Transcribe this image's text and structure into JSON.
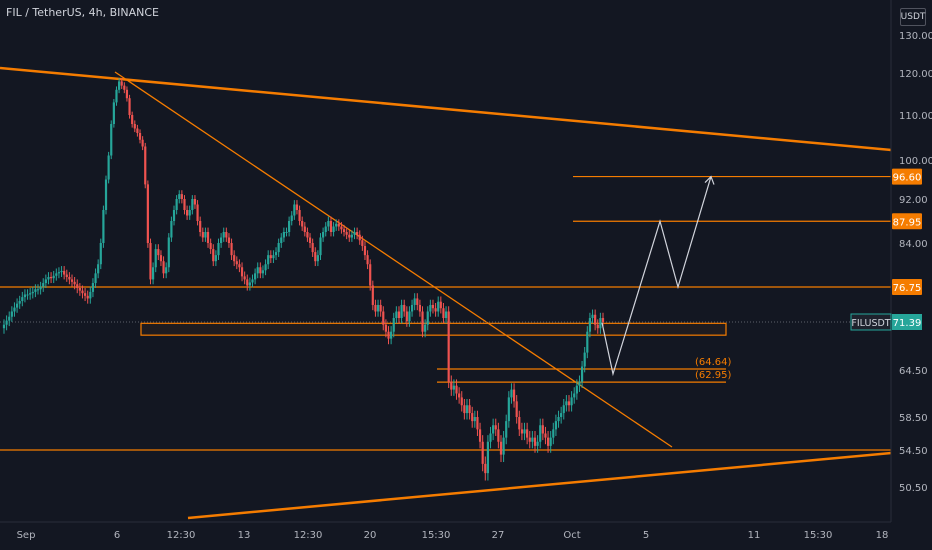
{
  "header": {
    "title": "FIL / TetherUS, 4h, BINANCE",
    "currency": "USDT"
  },
  "chart_data": {
    "type": "candlestick",
    "symbol": "FILUSDT",
    "last_price": "71.39",
    "y_ticks": [
      "130.00",
      "120.00",
      "110.00",
      "100.00",
      "92.00",
      "84.00",
      "64.50",
      "58.50",
      "54.50",
      "50.50"
    ],
    "y_tick_values": [
      130.0,
      120.0,
      110.0,
      100.0,
      92.0,
      84.0,
      64.5,
      58.5,
      54.5,
      50.5
    ],
    "x_ticks": [
      "Sep",
      "6",
      "12:30",
      "13",
      "12:30",
      "20",
      "15:30",
      "27",
      "Oct",
      "5",
      "11",
      "15:30",
      "18"
    ],
    "price_tags": [
      {
        "label": "96.60",
        "value": 96.6
      },
      {
        "label": "87.95",
        "value": 87.95
      },
      {
        "label": "76.75",
        "value": 76.75
      }
    ],
    "level_labels": [
      {
        "label": "(64.64)",
        "value": 64.64
      },
      {
        "label": "(62.95)",
        "value": 62.95
      }
    ],
    "horizontal_levels": [
      96.6,
      87.95,
      76.75,
      64.64,
      62.95,
      54.5
    ],
    "support_zone": {
      "from": 69.5,
      "to": 71.2
    },
    "projected_path": [
      71.3,
      64.0,
      87.95,
      76.75,
      96.6
    ],
    "colors": {
      "up": "#26a69a",
      "down": "#ef5350",
      "drawing": "#f57c00",
      "projection": "#d1d4dc",
      "last_price_bg": "#26a69a"
    },
    "candles_close": [
      71.0,
      71.6,
      72.2,
      73.0,
      73.6,
      74.2,
      74.6,
      75.2,
      75.6,
      75.6,
      75.8,
      76.0,
      76.4,
      76.4,
      76.8,
      77.4,
      78.0,
      78.4,
      78.2,
      78.6,
      79.0,
      79.2,
      79.4,
      78.8,
      78.4,
      78.0,
      77.6,
      77.2,
      76.6,
      76.2,
      75.8,
      75.4,
      75.0,
      76.0,
      77.4,
      79.0,
      80.5,
      84.0,
      90.0,
      96.0,
      101.0,
      108.0,
      113.0,
      116.0,
      118.0,
      117.0,
      116.0,
      114.0,
      110.0,
      108.0,
      107.0,
      106.0,
      104.5,
      103.0,
      95.0,
      84.0,
      78.0,
      80.0,
      83.0,
      82.0,
      81.0,
      79.0,
      80.0,
      85.0,
      88.0,
      90.0,
      92.0,
      93.0,
      92.0,
      90.0,
      89.0,
      90.0,
      92.0,
      91.0,
      88.0,
      86.0,
      85.0,
      86.0,
      84.0,
      83.0,
      81.0,
      82.0,
      84.0,
      85.0,
      86.0,
      85.0,
      84.0,
      82.0,
      81.0,
      80.5,
      80.0,
      78.5,
      78.0,
      77.0,
      77.5,
      78.0,
      79.0,
      80.0,
      79.0,
      79.5,
      80.5,
      82.0,
      81.5,
      82.0,
      82.5,
      84.0,
      85.0,
      86.0,
      86.0,
      88.0,
      89.0,
      91.0,
      90.0,
      88.0,
      87.0,
      86.0,
      85.0,
      84.0,
      82.5,
      81.0,
      82.0,
      85.0,
      86.0,
      87.0,
      88.0,
      86.0,
      87.0,
      87.5,
      87.0,
      86.5,
      86.0,
      85.5,
      85.0,
      85.5,
      86.0,
      85.5,
      84.5,
      83.5,
      82.0,
      80.5,
      77.0,
      74.0,
      73.0,
      74.0,
      73.0,
      71.0,
      70.0,
      69.0,
      70.0,
      72.0,
      73.0,
      72.0,
      74.0,
      73.0,
      71.5,
      73.0,
      74.0,
      75.0,
      74.0,
      73.0,
      70.0,
      71.0,
      73.0,
      74.0,
      73.5,
      73.0,
      74.5,
      73.5,
      72.0,
      73.0,
      63.0,
      62.0,
      62.5,
      61.5,
      61.0,
      60.0,
      59.0,
      60.0,
      59.0,
      58.0,
      58.5,
      57.0,
      55.5,
      53.0,
      52.0,
      55.5,
      56.5,
      57.5,
      57.0,
      55.5,
      54.0,
      56.0,
      58.0,
      61.0,
      62.0,
      60.5,
      58.5,
      57.0,
      56.5,
      57.0,
      56.0,
      55.5,
      56.0,
      55.0,
      55.5,
      57.5,
      56.5,
      56.0,
      55.0,
      56.0,
      57.0,
      58.0,
      58.5,
      59.0,
      60.0,
      60.5,
      60.0,
      61.0,
      61.5,
      62.5,
      63.0,
      65.0,
      67.0,
      70.0,
      72.0,
      72.5,
      71.0,
      70.5,
      72.0,
      71.4
    ]
  }
}
